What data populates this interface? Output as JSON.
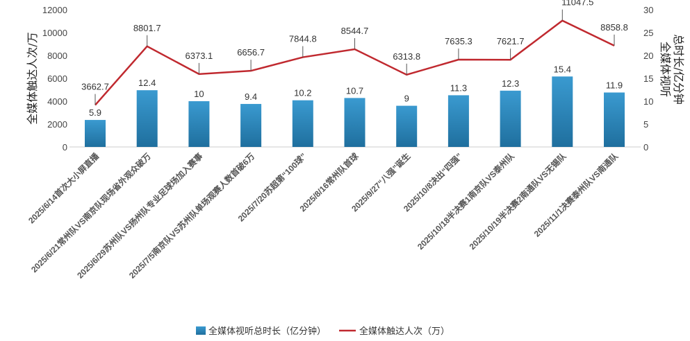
{
  "chart_data": {
    "type": "bar+line",
    "categories": [
      "2025/6/14首次大小屏直播",
      "2025/6/21常州队VS南京队现场省外观众破万",
      "2025/6/29苏州队VS扬州队专业足球场加入赛事",
      "2025/7/5南京队VS苏州队单场观赛人数首破6万",
      "2025/7/20苏超第“100球”",
      "2025/8/16常州队首球",
      "2025/9/27“八强”诞生",
      "2025/10/8决出“四强”",
      "2025/10/18半决赛1南京队VS泰州队",
      "2025/10/19半决赛2南通队VS无锡队",
      "2025/11/1决赛泰州队VS南通队"
    ],
    "series": [
      {
        "name": "全媒体视听总时长（亿分钟）",
        "type": "bar",
        "axis": "right",
        "color": "#2a86b8",
        "values": [
          5.9,
          12.4,
          10,
          9.4,
          10.2,
          10.7,
          9,
          11.3,
          12.3,
          15.4,
          11.9
        ]
      },
      {
        "name": "全媒体触达人次（万）",
        "type": "line",
        "axis": "left",
        "color": "#c0292f",
        "values": [
          3662.7,
          8801.7,
          6373.1,
          6656.7,
          7844.8,
          8544.7,
          6313.8,
          7635.3,
          7621.7,
          11047.5,
          8858.8
        ]
      }
    ],
    "ylabel": "全媒体触达人次/万",
    "y2label_lines": [
      "全媒体视听",
      "总时长/亿分钟"
    ],
    "ylim": [
      0,
      12000
    ],
    "y2lim": [
      0,
      30
    ],
    "yticks": [
      0,
      2000,
      4000,
      6000,
      8000,
      10000,
      12000
    ],
    "y2ticks": [
      0,
      5,
      10,
      15,
      20,
      25,
      30
    ],
    "legend_position": "bottom",
    "grid": false
  }
}
